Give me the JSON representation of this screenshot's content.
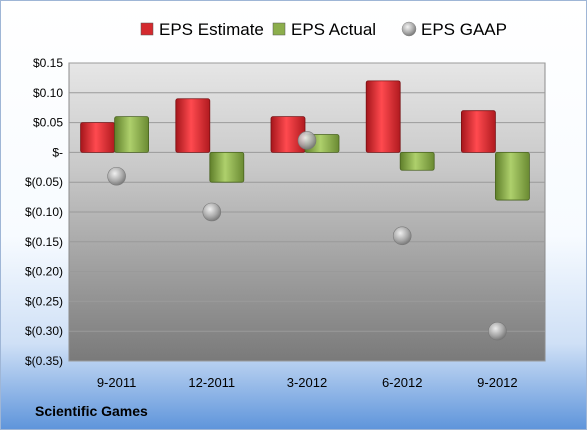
{
  "company": "Scientific Games",
  "chart_data": {
    "type": "bar",
    "title": "",
    "xlabel": "",
    "ylabel": "",
    "categories": [
      "9-2011",
      "12-2011",
      "3-2012",
      "6-2012",
      "9-2012"
    ],
    "series": [
      {
        "name": "EPS Estimate",
        "kind": "bar",
        "color": "#d42a2f",
        "values": [
          0.05,
          0.09,
          0.06,
          0.12,
          0.07
        ]
      },
      {
        "name": "EPS Actual",
        "kind": "bar",
        "color": "#8cae4c",
        "values": [
          0.06,
          -0.05,
          0.03,
          -0.03,
          -0.08
        ]
      },
      {
        "name": "EPS GAAP",
        "kind": "scatter",
        "color": "#a8a8a8",
        "values": [
          -0.04,
          -0.1,
          0.02,
          -0.14,
          -0.3
        ]
      }
    ],
    "ylim": [
      -0.35,
      0.15
    ],
    "yticks": [
      0.15,
      0.1,
      0.05,
      0,
      -0.05,
      -0.1,
      -0.15,
      -0.2,
      -0.25,
      -0.3,
      -0.35
    ],
    "ytick_labels": [
      "$0.15",
      "$0.10",
      "$0.05",
      "$-",
      "$(0.05)",
      "$(0.10)",
      "$(0.15)",
      "$(0.20)",
      "$(0.25)",
      "$(0.30)",
      "$(0.35)"
    ],
    "grid": true,
    "legend": "top"
  }
}
